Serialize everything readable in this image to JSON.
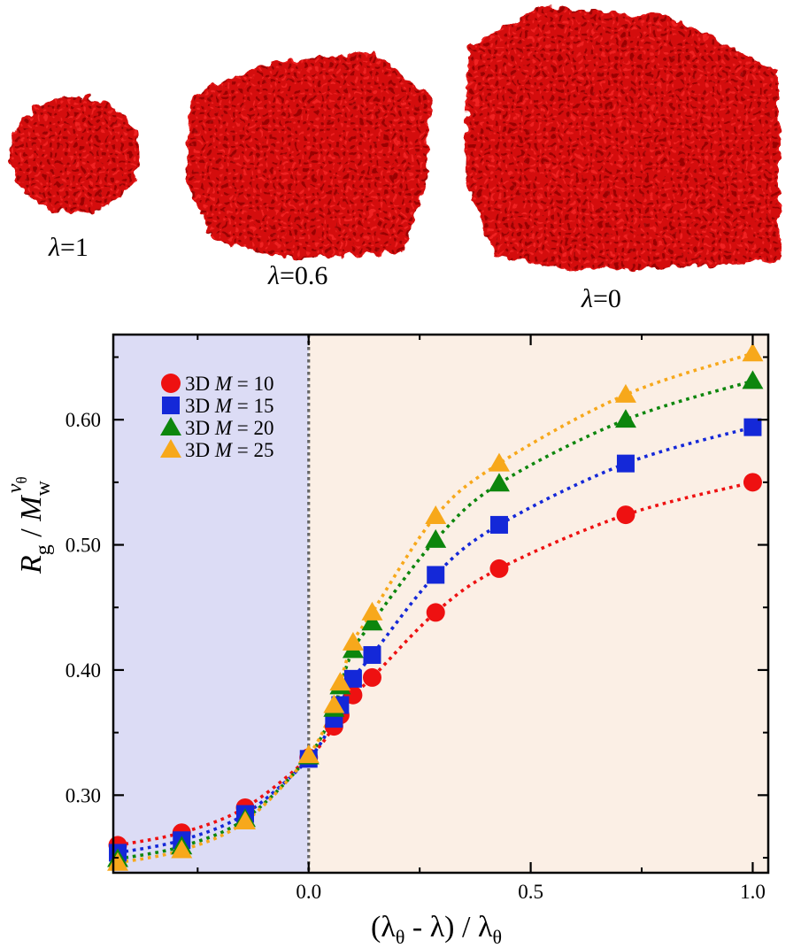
{
  "images": [
    {
      "label_symbol": "λ",
      "label_value": "=1"
    },
    {
      "label_symbol": "λ",
      "label_value": "=0.6"
    },
    {
      "label_symbol": "λ",
      "label_value": "=0"
    }
  ],
  "colors": {
    "good_solvent_shade": "#dcdcf5",
    "poor_solvent_shade": "#fbefe5",
    "polymer_red": "#d40f0f"
  },
  "chart_data": {
    "type": "scatter",
    "x_ticks": [
      "0.0",
      "0.5",
      "1.0"
    ],
    "y_ticks": [
      "0.30",
      "0.40",
      "0.50",
      "0.60"
    ],
    "xlim": [
      -0.44,
      1.035
    ],
    "ylim": [
      0.238,
      0.668
    ],
    "grid": false,
    "legend_position": "top-left",
    "reference_line_x": 0.0,
    "shaded_regions": [
      {
        "x_range": [
          -0.44,
          0.0
        ],
        "color": "#dcdcf5"
      },
      {
        "x_range": [
          0.0,
          1.035
        ],
        "color": "#fbefe5"
      }
    ],
    "series": [
      {
        "name": "3D M = 10",
        "prefix": "3D ",
        "var": "M",
        "eq": " = 10",
        "marker": "circle",
        "color": "#ee1111",
        "x": [
          -0.43,
          -0.286,
          -0.143,
          0.0,
          0.057,
          0.071,
          0.1,
          0.143,
          0.286,
          0.429,
          0.714,
          1.0
        ],
        "y": [
          0.26,
          0.27,
          0.29,
          0.33,
          0.355,
          0.364,
          0.38,
          0.394,
          0.446,
          0.481,
          0.524,
          0.55
        ]
      },
      {
        "name": "3D M = 15",
        "prefix": "3D ",
        "var": "M",
        "eq": " = 15",
        "marker": "square",
        "color": "#1428d8",
        "x": [
          -0.43,
          -0.286,
          -0.143,
          0.0,
          0.057,
          0.071,
          0.1,
          0.143,
          0.286,
          0.429,
          0.714,
          1.0
        ],
        "y": [
          0.254,
          0.264,
          0.285,
          0.329,
          0.361,
          0.372,
          0.393,
          0.412,
          0.476,
          0.516,
          0.565,
          0.594
        ]
      },
      {
        "name": "3D M = 20",
        "prefix": "3D ",
        "var": "M",
        "eq": " = 20",
        "marker": "triangle",
        "color": "#0d860d",
        "x": [
          -0.43,
          -0.286,
          -0.143,
          0.0,
          0.057,
          0.071,
          0.1,
          0.143,
          0.286,
          0.429,
          0.714,
          1.0
        ],
        "y": [
          0.249,
          0.259,
          0.281,
          0.331,
          0.369,
          0.387,
          0.416,
          0.438,
          0.504,
          0.549,
          0.6,
          0.631
        ]
      },
      {
        "name": "3D M = 25",
        "prefix": "3D ",
        "var": "M",
        "eq": " = 25",
        "marker": "triangle",
        "color": "#f7a81b",
        "x": [
          -0.43,
          -0.286,
          -0.143,
          0.0,
          0.057,
          0.071,
          0.1,
          0.143,
          0.286,
          0.429,
          0.714,
          1.0
        ],
        "y": [
          0.246,
          0.256,
          0.279,
          0.332,
          0.372,
          0.39,
          0.422,
          0.446,
          0.523,
          0.565,
          0.62,
          0.653
        ]
      }
    ]
  }
}
